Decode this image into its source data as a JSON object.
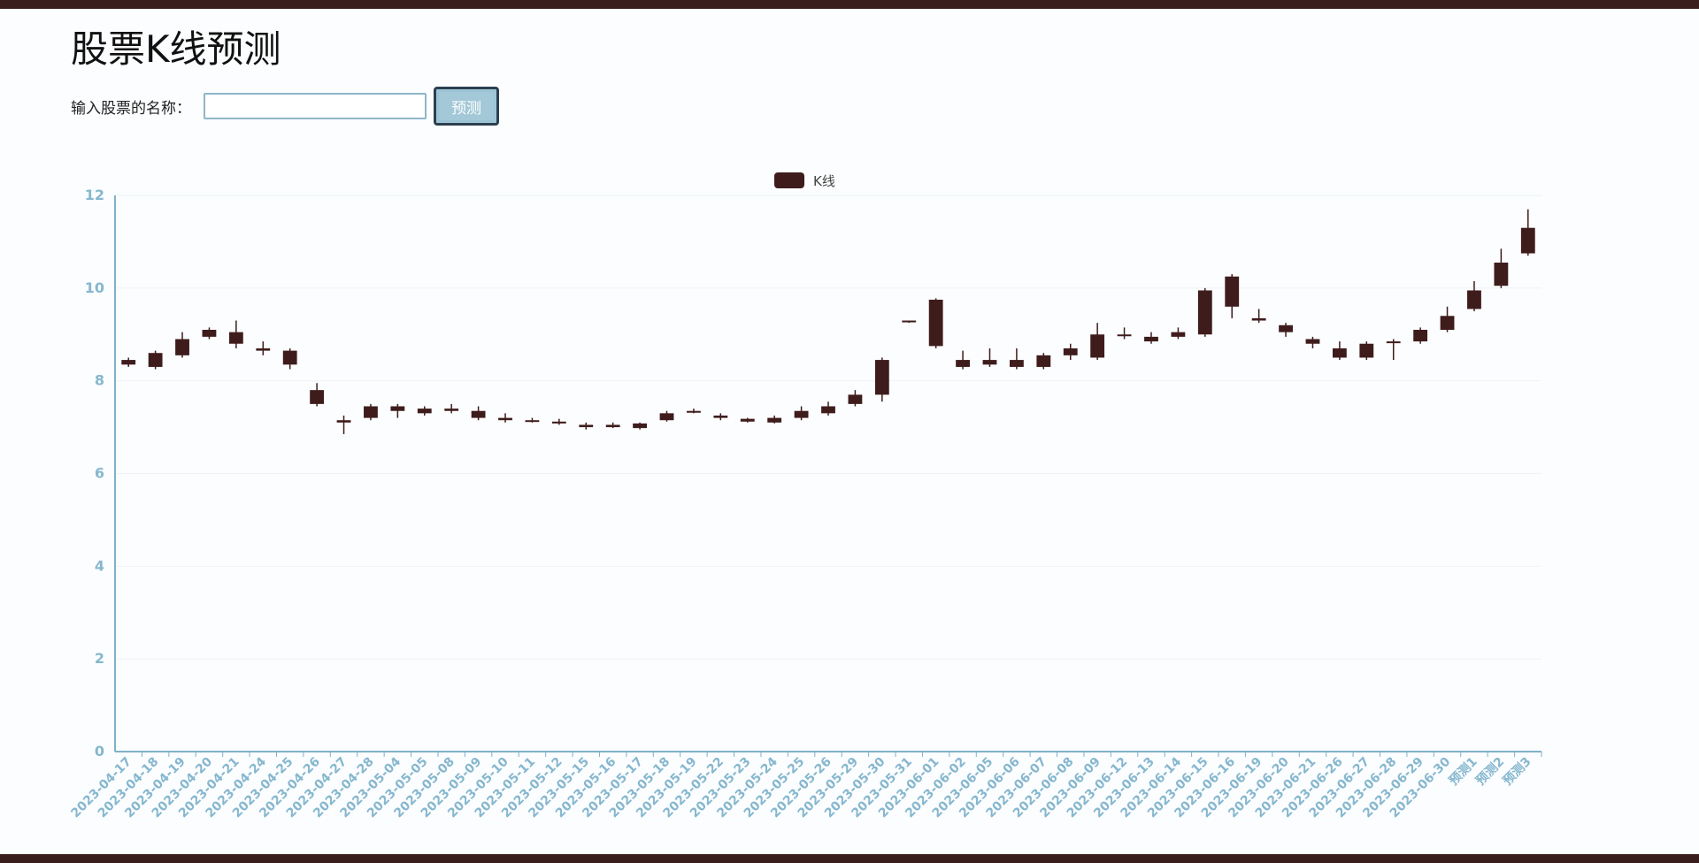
{
  "page": {
    "title": "股票K线预测",
    "input_label": "输入股票的名称：",
    "input_value": "",
    "predict_button": "预测"
  },
  "colors": {
    "candle": "#3f1c1c",
    "axis": "#7fb2c9",
    "tick_label": "#86b7cf",
    "grid": "#eef3f6"
  },
  "chart_data": {
    "type": "candlestick",
    "legend": [
      "K线"
    ],
    "legend_position": "top-center",
    "ylim": [
      0,
      12
    ],
    "yticks": [
      0,
      2,
      4,
      6,
      8,
      10,
      12
    ],
    "grid": true,
    "categories": [
      "2023-04-17",
      "2023-04-18",
      "2023-04-19",
      "2023-04-20",
      "2023-04-21",
      "2023-04-24",
      "2023-04-25",
      "2023-04-26",
      "2023-04-27",
      "2023-04-28",
      "2023-05-04",
      "2023-05-05",
      "2023-05-08",
      "2023-05-09",
      "2023-05-10",
      "2023-05-11",
      "2023-05-12",
      "2023-05-15",
      "2023-05-16",
      "2023-05-17",
      "2023-05-18",
      "2023-05-19",
      "2023-05-22",
      "2023-05-23",
      "2023-05-24",
      "2023-05-25",
      "2023-05-26",
      "2023-05-29",
      "2023-05-30",
      "2023-05-31",
      "2023-06-01",
      "2023-06-02",
      "2023-06-05",
      "2023-06-06",
      "2023-06-07",
      "2023-06-08",
      "2023-06-09",
      "2023-06-12",
      "2023-06-13",
      "2023-06-14",
      "2023-06-15",
      "2023-06-16",
      "2023-06-19",
      "2023-06-20",
      "2023-06-21",
      "2023-06-26",
      "2023-06-27",
      "2023-06-28",
      "2023-06-29",
      "2023-06-30",
      "预测1",
      "预测2",
      "预测3"
    ],
    "series": [
      {
        "name": "K线",
        "ohlc": [
          [
            8.35,
            8.45,
            8.3,
            8.5
          ],
          [
            8.3,
            8.6,
            8.25,
            8.65
          ],
          [
            8.55,
            8.9,
            8.5,
            9.05
          ],
          [
            8.95,
            9.1,
            8.9,
            9.15
          ],
          [
            8.8,
            9.05,
            8.7,
            9.3
          ],
          [
            8.7,
            8.65,
            8.55,
            8.85
          ],
          [
            8.35,
            8.65,
            8.25,
            8.7
          ],
          [
            7.5,
            7.8,
            7.45,
            7.95
          ],
          [
            7.15,
            7.1,
            6.85,
            7.25
          ],
          [
            7.2,
            7.45,
            7.15,
            7.5
          ],
          [
            7.35,
            7.45,
            7.2,
            7.5
          ],
          [
            7.3,
            7.4,
            7.25,
            7.45
          ],
          [
            7.35,
            7.4,
            7.3,
            7.5
          ],
          [
            7.2,
            7.35,
            7.15,
            7.45
          ],
          [
            7.15,
            7.2,
            7.1,
            7.3
          ],
          [
            7.15,
            7.12,
            7.1,
            7.2
          ],
          [
            7.08,
            7.12,
            7.05,
            7.18
          ],
          [
            7.05,
            7.0,
            6.95,
            7.1
          ],
          [
            7.0,
            7.05,
            6.98,
            7.1
          ],
          [
            6.98,
            7.08,
            6.95,
            7.1
          ],
          [
            7.15,
            7.3,
            7.12,
            7.35
          ],
          [
            7.35,
            7.32,
            7.3,
            7.4
          ],
          [
            7.25,
            7.2,
            7.15,
            7.3
          ],
          [
            7.12,
            7.18,
            7.1,
            7.2
          ],
          [
            7.1,
            7.2,
            7.08,
            7.25
          ],
          [
            7.2,
            7.35,
            7.15,
            7.45
          ],
          [
            7.3,
            7.45,
            7.25,
            7.55
          ],
          [
            7.5,
            7.7,
            7.45,
            7.8
          ],
          [
            7.7,
            8.45,
            7.55,
            8.5
          ],
          [
            9.3,
            9.28,
            9.25,
            9.3
          ],
          [
            8.75,
            9.75,
            8.7,
            9.78
          ],
          [
            8.3,
            8.45,
            8.25,
            8.65
          ],
          [
            8.35,
            8.45,
            8.3,
            8.7
          ],
          [
            8.3,
            8.45,
            8.25,
            8.7
          ],
          [
            8.3,
            8.55,
            8.25,
            8.6
          ],
          [
            8.55,
            8.7,
            8.45,
            8.8
          ],
          [
            8.5,
            9.0,
            8.45,
            9.25
          ],
          [
            9.0,
            8.98,
            8.9,
            9.15
          ],
          [
            8.85,
            8.95,
            8.8,
            9.05
          ],
          [
            8.95,
            9.05,
            8.9,
            9.15
          ],
          [
            9.0,
            9.95,
            8.95,
            10.0
          ],
          [
            9.6,
            10.25,
            9.35,
            10.3
          ],
          [
            9.3,
            9.35,
            9.25,
            9.55
          ],
          [
            9.2,
            9.05,
            8.95,
            9.25
          ],
          [
            8.9,
            8.8,
            8.7,
            8.95
          ],
          [
            8.7,
            8.5,
            8.45,
            8.85
          ],
          [
            8.5,
            8.8,
            8.45,
            8.85
          ],
          [
            8.85,
            8.85,
            8.45,
            8.9
          ],
          [
            8.85,
            9.1,
            8.8,
            9.15
          ],
          [
            9.1,
            9.4,
            9.05,
            9.6
          ],
          [
            9.55,
            9.95,
            9.5,
            10.15
          ],
          [
            10.05,
            10.55,
            10.0,
            10.85
          ],
          [
            10.75,
            11.3,
            10.7,
            11.7
          ]
        ]
      }
    ]
  }
}
